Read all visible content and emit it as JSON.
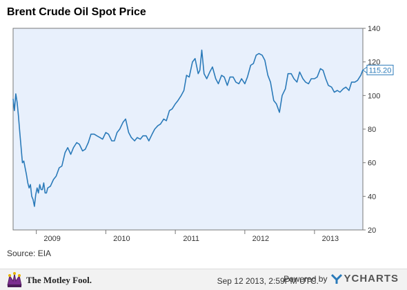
{
  "chart_data": {
    "type": "line",
    "title": "Brent Crude Oil Spot Price",
    "xlabel": "",
    "ylabel": "",
    "x_ticks": [
      "2009",
      "2010",
      "2011",
      "2012",
      "2013"
    ],
    "y_ticks": [
      20,
      40,
      60,
      80,
      100,
      120,
      140
    ],
    "ylim": [
      20,
      140
    ],
    "xlim": [
      "2008-09-01",
      "2013-09-12"
    ],
    "grid": false,
    "last_value_label": "115.20",
    "series": [
      {
        "color": "#2a7ab9",
        "x": [
          "2008-09-01",
          "2008-09-08",
          "2008-09-15",
          "2008-09-22",
          "2008-09-29",
          "2008-10-06",
          "2008-10-13",
          "2008-10-20",
          "2008-10-27",
          "2008-11-03",
          "2008-11-10",
          "2008-11-17",
          "2008-11-24",
          "2008-12-01",
          "2008-12-08",
          "2008-12-15",
          "2008-12-22",
          "2008-12-29",
          "2009-01-05",
          "2009-01-12",
          "2009-01-19",
          "2009-01-26",
          "2009-02-02",
          "2009-02-09",
          "2009-02-16",
          "2009-02-23",
          "2009-03-02",
          "2009-03-16",
          "2009-04-01",
          "2009-04-15",
          "2009-05-01",
          "2009-05-15",
          "2009-06-01",
          "2009-06-15",
          "2009-07-01",
          "2009-07-15",
          "2009-08-01",
          "2009-08-15",
          "2009-09-01",
          "2009-09-15",
          "2009-10-01",
          "2009-10-15",
          "2009-11-01",
          "2009-11-15",
          "2009-12-01",
          "2009-12-15",
          "2010-01-01",
          "2010-01-15",
          "2010-02-01",
          "2010-02-15",
          "2010-03-01",
          "2010-03-15",
          "2010-04-01",
          "2010-04-15",
          "2010-05-01",
          "2010-05-15",
          "2010-06-01",
          "2010-06-15",
          "2010-07-01",
          "2010-07-15",
          "2010-08-01",
          "2010-08-15",
          "2010-09-01",
          "2010-09-15",
          "2010-10-01",
          "2010-10-15",
          "2010-11-01",
          "2010-11-15",
          "2010-12-01",
          "2010-12-15",
          "2011-01-01",
          "2011-01-15",
          "2011-02-01",
          "2011-02-15",
          "2011-03-01",
          "2011-03-15",
          "2011-04-01",
          "2011-04-15",
          "2011-05-01",
          "2011-05-10",
          "2011-05-20",
          "2011-06-01",
          "2011-06-15",
          "2011-07-01",
          "2011-07-15",
          "2011-08-01",
          "2011-08-15",
          "2011-09-01",
          "2011-09-15",
          "2011-10-01",
          "2011-10-15",
          "2011-11-01",
          "2011-11-15",
          "2011-12-01",
          "2011-12-15",
          "2012-01-01",
          "2012-01-15",
          "2012-02-01",
          "2012-02-15",
          "2012-03-01",
          "2012-03-15",
          "2012-04-01",
          "2012-04-15",
          "2012-05-01",
          "2012-05-15",
          "2012-06-01",
          "2012-06-15",
          "2012-07-01",
          "2012-07-15",
          "2012-08-01",
          "2012-08-15",
          "2012-09-01",
          "2012-09-15",
          "2012-10-01",
          "2012-10-15",
          "2012-11-01",
          "2012-11-15",
          "2012-12-01",
          "2012-12-15",
          "2013-01-01",
          "2013-01-15",
          "2013-02-01",
          "2013-02-15",
          "2013-03-01",
          "2013-03-15",
          "2013-04-01",
          "2013-04-15",
          "2013-05-01",
          "2013-05-15",
          "2013-06-01",
          "2013-06-15",
          "2013-07-01",
          "2013-07-15",
          "2013-08-01",
          "2013-08-15",
          "2013-09-01",
          "2013-09-12"
        ],
        "y": [
          98,
          91,
          101,
          96,
          88,
          78,
          69,
          60,
          61,
          57,
          53,
          48,
          45,
          47,
          40,
          38,
          34,
          41,
          45,
          42,
          47,
          44,
          44,
          48,
          42,
          42,
          45,
          46,
          50,
          52,
          57,
          58,
          66,
          69,
          65,
          69,
          72,
          71,
          67,
          68,
          72,
          77,
          77,
          76,
          75,
          74,
          78,
          77,
          73,
          73,
          78,
          80,
          84,
          86,
          78,
          75,
          73,
          75,
          74,
          76,
          76,
          73,
          77,
          80,
          82,
          83,
          86,
          85,
          91,
          92,
          95,
          97,
          100,
          103,
          112,
          111,
          120,
          122,
          113,
          115,
          127,
          113,
          110,
          114,
          117,
          110,
          107,
          112,
          111,
          106,
          111,
          111,
          108,
          107,
          110,
          107,
          111,
          118,
          119,
          124,
          125,
          124,
          121,
          112,
          108,
          97,
          95,
          90,
          100,
          104,
          113,
          113,
          110,
          108,
          114,
          110,
          108,
          107,
          110,
          110,
          111,
          116,
          115,
          110,
          106,
          105,
          102,
          103,
          102,
          104,
          105,
          103,
          108,
          108,
          109,
          112,
          115.2
        ]
      }
    ]
  },
  "source": "Source: EIA",
  "brand_left": "The Motley Fool.",
  "timestamp": "Sep 12 2013, 2:59PM UTC.",
  "powered_by": "Powered by",
  "brand_right": "YCHARTS",
  "colors": {
    "line": "#2a7ab9",
    "plot_bg": "#e8f0fc",
    "axis": "#777777"
  }
}
